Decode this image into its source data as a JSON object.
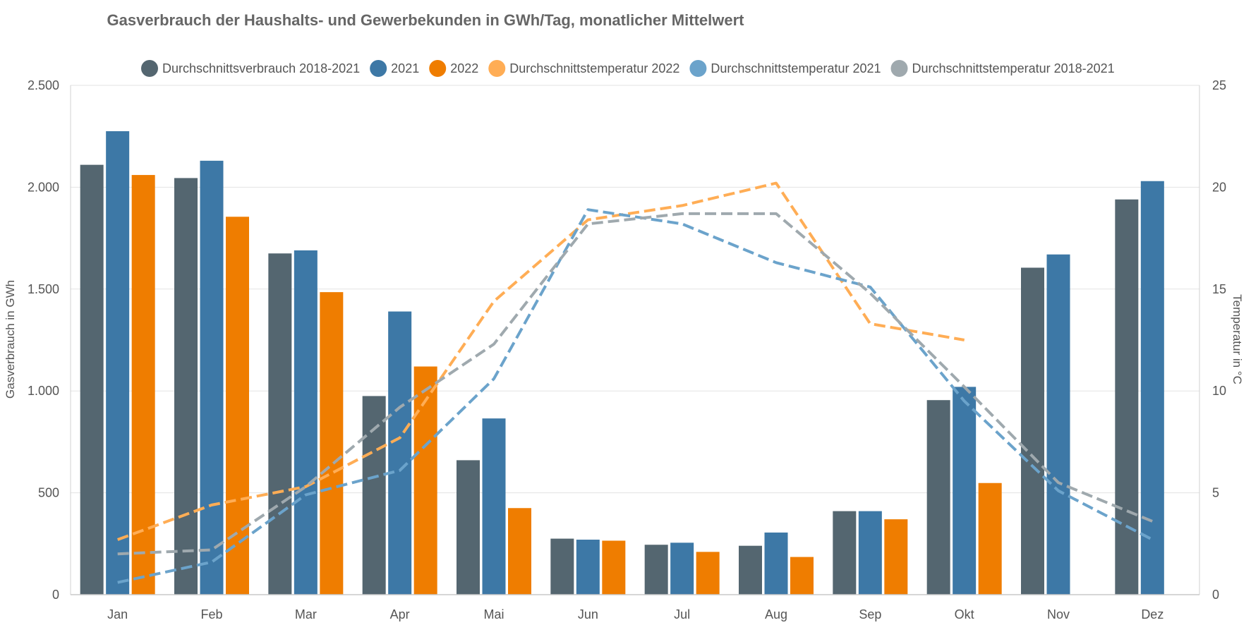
{
  "chart_data": {
    "type": "bar",
    "title": "Gasverbrauch der Haushalts- und Gewerbekunden in GWh/Tag, monatlicher Mittelwert",
    "categories": [
      "Jan",
      "Feb",
      "Mar",
      "Apr",
      "Mai",
      "Jun",
      "Jul",
      "Aug",
      "Sep",
      "Okt",
      "Nov",
      "Dez"
    ],
    "y_left": {
      "label": "Gasverbrauch in GWh",
      "range": [
        0,
        2500
      ],
      "ticks": [
        "0",
        "500",
        "1.000",
        "1.500",
        "2.000",
        "2.500"
      ],
      "tick_values": [
        0,
        500,
        1000,
        1500,
        2000,
        2500
      ]
    },
    "y_right": {
      "label": "Temperatur in °C",
      "range": [
        0,
        25
      ],
      "ticks": [
        "0",
        "5",
        "10",
        "15",
        "20",
        "25"
      ],
      "tick_values": [
        0,
        5,
        10,
        15,
        20,
        25
      ]
    },
    "grid": true,
    "legend_position": "top",
    "bar_series": [
      {
        "name": "Durchschnittsverbrauch 2018-2021",
        "color": "#546670",
        "values": [
          2110,
          2045,
          1675,
          975,
          660,
          275,
          245,
          240,
          410,
          955,
          1605,
          1940
        ]
      },
      {
        "name": "2021",
        "color": "#3d78a6",
        "values": [
          2275,
          2130,
          1690,
          1390,
          865,
          270,
          255,
          305,
          410,
          1020,
          1670,
          2030
        ]
      },
      {
        "name": "2022",
        "color": "#ef7d00",
        "values": [
          2060,
          1855,
          1485,
          1120,
          425,
          265,
          210,
          185,
          370,
          548,
          null,
          null
        ]
      }
    ],
    "line_series": [
      {
        "name": "Durchschnittstemperatur 2022",
        "color": "#ffad55",
        "dashed": true,
        "values": [
          2.7,
          4.4,
          5.3,
          7.7,
          14.4,
          18.4,
          19.1,
          20.2,
          13.3,
          12.5,
          null,
          null
        ]
      },
      {
        "name": "Durchschnittstemperatur 2021",
        "color": "#6ba3cb",
        "dashed": true,
        "values": [
          0.6,
          1.6,
          4.9,
          6.1,
          10.6,
          18.9,
          18.2,
          16.3,
          15.1,
          9.5,
          5.1,
          2.7
        ]
      },
      {
        "name": "Durchschnittstemperatur 2018-2021",
        "color": "#9fa9ae",
        "dashed": true,
        "values": [
          2.0,
          2.2,
          5.3,
          9.2,
          12.3,
          18.2,
          18.7,
          18.7,
          14.8,
          10.2,
          5.5,
          3.6
        ]
      }
    ]
  }
}
